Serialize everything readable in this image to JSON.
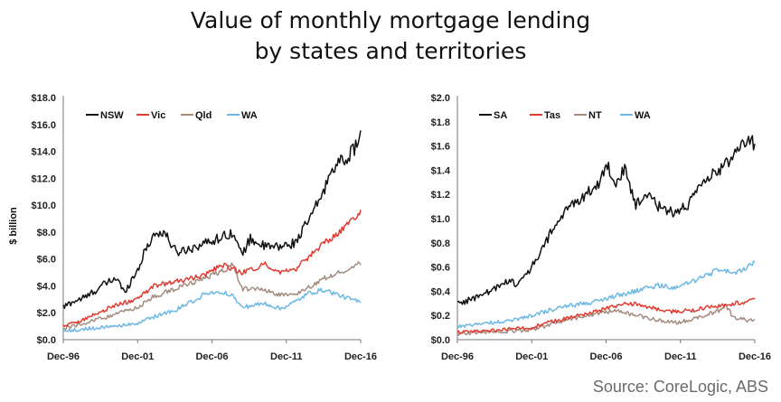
{
  "title": {
    "line1": "Value of monthly mortgage lending",
    "line2": "by states and territories"
  },
  "source": "Source: CoreLogic, ABS",
  "colors": {
    "black": "#111111",
    "red": "#e03c31",
    "brown": "#a58c80",
    "blue": "#6db9e4"
  },
  "chart_data": [
    {
      "type": "line",
      "ylabel": "$ billion",
      "ylim": [
        0,
        18
      ],
      "yticks": [
        0,
        2,
        4,
        6,
        8,
        10,
        12,
        14,
        16,
        18
      ],
      "ytick_labels": [
        "$0.0",
        "$2.0",
        "$4.0",
        "$6.0",
        "$8.0",
        "$10.0",
        "$12.0",
        "$14.0",
        "$16.0",
        "$18.0"
      ],
      "xlim": [
        1996.917,
        2016.917
      ],
      "xticks": [
        1996.917,
        2001.917,
        2006.917,
        2011.917,
        2016.917
      ],
      "xtick_labels": [
        "Dec-96",
        "Dec-01",
        "Dec-06",
        "Dec-11",
        "Dec-16"
      ],
      "legend": "top-left",
      "series": [
        {
          "name": "NSW",
          "color": "#111111",
          "x": [
            1996.917,
            1997.5,
            1998.5,
            1999.5,
            2000.5,
            2001.0,
            2001.917,
            2002.5,
            2003.0,
            2003.7,
            2004.5,
            2005.5,
            2006.5,
            2007.5,
            2008.3,
            2008.9,
            2009.5,
            2010.5,
            2011.5,
            2012.5,
            2013.5,
            2014.5,
            2015.0,
            2015.5,
            2016.0,
            2016.5,
            2016.917
          ],
          "y": [
            2.4,
            2.8,
            3.2,
            4.0,
            4.6,
            3.5,
            5.2,
            6.8,
            7.8,
            8.0,
            6.5,
            6.8,
            7.2,
            7.6,
            8.0,
            6.3,
            7.5,
            6.9,
            6.9,
            7.2,
            9.0,
            11.2,
            12.8,
            13.2,
            13.5,
            14.2,
            15.4
          ]
        },
        {
          "name": "Vic",
          "color": "#e03c31",
          "x": [
            1996.917,
            1998.5,
            2000.5,
            2001.917,
            2003.0,
            2004.5,
            2006.5,
            2007.5,
            2008.9,
            2010.5,
            2011.5,
            2012.5,
            2013.5,
            2014.5,
            2015.5,
            2016.5,
            2016.917
          ],
          "y": [
            1.0,
            1.6,
            2.6,
            3.0,
            4.0,
            4.3,
            4.8,
            5.6,
            5.0,
            5.6,
            5.0,
            5.2,
            6.2,
            7.2,
            8.0,
            9.0,
            9.6
          ]
        },
        {
          "name": "Qld",
          "color": "#a58c80",
          "x": [
            1996.917,
            1998.5,
            2000.5,
            2001.917,
            2003.0,
            2004.5,
            2006.5,
            2007.5,
            2008.3,
            2008.9,
            2010.5,
            2011.5,
            2012.5,
            2013.5,
            2014.5,
            2015.5,
            2016.5,
            2016.917
          ],
          "y": [
            0.8,
            1.3,
            1.9,
            2.4,
            3.2,
            3.8,
            4.6,
            5.0,
            5.6,
            3.8,
            3.7,
            3.3,
            3.4,
            3.9,
            4.6,
            5.0,
            5.5,
            5.7
          ]
        },
        {
          "name": "WA",
          "color": "#6db9e4",
          "x": [
            1996.917,
            1998.5,
            2000.5,
            2001.917,
            2003.0,
            2004.5,
            2006.5,
            2007.5,
            2008.3,
            2008.9,
            2010.5,
            2011.5,
            2012.5,
            2013.5,
            2014.5,
            2015.5,
            2016.5,
            2016.917
          ],
          "y": [
            0.6,
            0.8,
            1.0,
            1.2,
            1.7,
            2.2,
            3.4,
            3.6,
            3.3,
            2.4,
            2.7,
            2.3,
            2.8,
            3.5,
            3.7,
            3.3,
            2.9,
            2.8
          ]
        }
      ]
    },
    {
      "type": "line",
      "ylabel": "",
      "ylim": [
        0,
        2
      ],
      "yticks": [
        0,
        0.2,
        0.4,
        0.6,
        0.8,
        1.0,
        1.2,
        1.4,
        1.6,
        1.8,
        2.0
      ],
      "ytick_labels": [
        "$0.0",
        "$0.2",
        "$0.4",
        "$0.6",
        "$0.8",
        "$1.0",
        "$1.2",
        "$1.4",
        "$1.6",
        "$1.8",
        "$2.0"
      ],
      "xlim": [
        1996.917,
        2016.917
      ],
      "xticks": [
        1996.917,
        2001.917,
        2006.917,
        2011.917,
        2016.917
      ],
      "xtick_labels": [
        "Dec-96",
        "Dec-01",
        "Dec-06",
        "Dec-11",
        "Dec-16"
      ],
      "legend": "top-left",
      "series": [
        {
          "name": "SA",
          "color": "#111111",
          "x": [
            1996.917,
            1998.0,
            1999.5,
            2000.5,
            2001.0,
            2001.917,
            2002.5,
            2003.5,
            2004.5,
            2005.5,
            2006.5,
            2007.0,
            2007.5,
            2008.2,
            2008.9,
            2009.5,
            2010.5,
            2011.5,
            2012.5,
            2013.5,
            2014.0,
            2014.5,
            2015.0,
            2015.5,
            2016.0,
            2016.5,
            2016.917
          ],
          "y": [
            0.3,
            0.34,
            0.42,
            0.5,
            0.45,
            0.6,
            0.72,
            0.95,
            1.1,
            1.2,
            1.3,
            1.45,
            1.3,
            1.4,
            1.1,
            1.2,
            1.1,
            1.05,
            1.12,
            1.3,
            1.35,
            1.4,
            1.45,
            1.55,
            1.6,
            1.68,
            1.6
          ]
        },
        {
          "name": "Tas",
          "color": "#e03c31",
          "x": [
            1996.917,
            1998.5,
            2000.5,
            2001.917,
            2003.0,
            2004.5,
            2006.5,
            2007.5,
            2008.9,
            2010.5,
            2011.5,
            2012.5,
            2013.5,
            2014.5,
            2015.5,
            2016.5,
            2016.917
          ],
          "y": [
            0.06,
            0.07,
            0.09,
            0.1,
            0.14,
            0.18,
            0.24,
            0.28,
            0.3,
            0.25,
            0.23,
            0.24,
            0.26,
            0.28,
            0.3,
            0.31,
            0.34
          ]
        },
        {
          "name": "NT",
          "color": "#a58c80",
          "x": [
            1996.917,
            1998.5,
            2000.5,
            2001.917,
            2003.0,
            2004.5,
            2006.5,
            2007.5,
            2008.9,
            2010.5,
            2011.5,
            2012.5,
            2013.5,
            2014.5,
            2015.0,
            2015.5,
            2016.5,
            2016.917
          ],
          "y": [
            0.05,
            0.06,
            0.07,
            0.08,
            0.12,
            0.17,
            0.22,
            0.24,
            0.2,
            0.16,
            0.14,
            0.16,
            0.2,
            0.24,
            0.28,
            0.18,
            0.16,
            0.15
          ]
        },
        {
          "name": "WA",
          "color": "#6db9e4",
          "x": [
            1996.917,
            1998.5,
            2000.5,
            2001.917,
            2003.0,
            2004.5,
            2006.5,
            2007.5,
            2008.9,
            2010.5,
            2011.5,
            2012.5,
            2013.5,
            2014.5,
            2015.5,
            2016.5,
            2016.917
          ],
          "y": [
            0.11,
            0.13,
            0.16,
            0.2,
            0.24,
            0.28,
            0.32,
            0.36,
            0.4,
            0.45,
            0.42,
            0.47,
            0.52,
            0.58,
            0.55,
            0.6,
            0.64
          ]
        }
      ]
    }
  ]
}
